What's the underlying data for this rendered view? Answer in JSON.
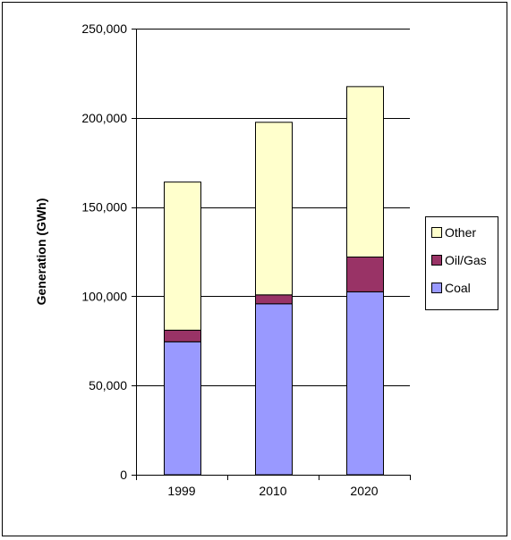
{
  "chart_data": {
    "type": "bar",
    "stacked": true,
    "title": "",
    "xlabel": "",
    "ylabel": "Generation (GWh)",
    "categories": [
      "1999",
      "2010",
      "2020"
    ],
    "ylim": [
      0,
      250000
    ],
    "yticks": [
      0,
      50000,
      100000,
      150000,
      200000,
      250000
    ],
    "ytick_labels": [
      "0",
      "50,000",
      "100,000",
      "150,000",
      "200,000",
      "250,000"
    ],
    "grid": true,
    "legend_position": "right",
    "series": [
      {
        "name": "Coal",
        "color": "#9999ff",
        "values": [
          74500,
          95800,
          102500
        ]
      },
      {
        "name": "Oil/Gas",
        "color": "#993366",
        "values": [
          6500,
          5000,
          19500
        ]
      },
      {
        "name": "Other",
        "color": "#ffffcc",
        "values": [
          83000,
          96700,
          95500
        ]
      }
    ],
    "legend_order": [
      "Other",
      "Oil/Gas",
      "Coal"
    ]
  }
}
